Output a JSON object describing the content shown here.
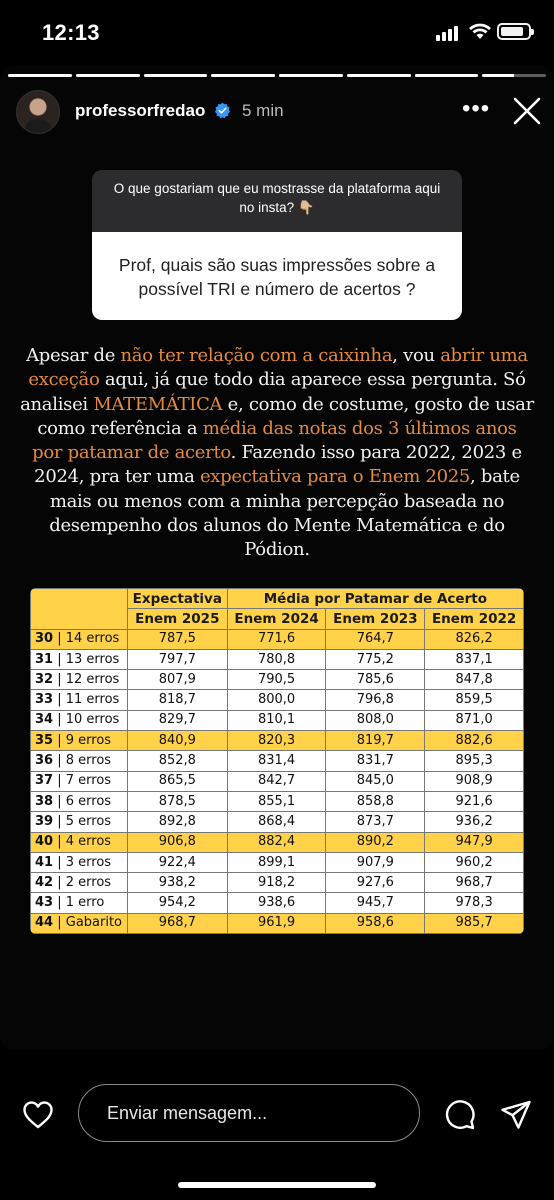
{
  "status_bar": {
    "time": "12:13",
    "battery_level": 0.85
  },
  "story": {
    "progress": [
      1,
      1,
      1,
      1,
      1,
      1,
      1,
      0.5
    ],
    "username": "professorfredao",
    "verified": true,
    "time_ago": "5 min",
    "icons": {
      "more": "more-options-icon",
      "close": "close-icon",
      "verified": "verified-badge-icon"
    },
    "question_sticker": {
      "question": "O que gostariam que eu mostrasse da plataforma aqui no insta? 👇🏼",
      "answer": "Prof, quais são suas impressões sobre a possível TRI e número de acertos ?"
    },
    "caption": {
      "t1": "Apesar de ",
      "h1": "não ter relação com a caixinha",
      "t2": ", vou ",
      "h2": "abrir uma exceção",
      "t3": " aqui, já que todo dia aparece essa pergunta. Só analisei ",
      "h3": "MATEMÁTICA",
      "t4": " e, como de costume, gosto de usar como referência a ",
      "h4": "média das notas dos 3 últimos anos por patamar de acerto",
      "t5": ". Fazendo isso para 2022, 2023 e 2024, pra ter uma ",
      "h5": "expectativa para o Enem 2025",
      "t6": ", bate mais ou menos com a minha percepção baseada no desempenho dos alunos do Mente Matemática e do Pódion.",
      "highlight_color": "#E58A3E"
    },
    "table": {
      "header_group_1": "Expectativa",
      "header_group_2": "Média por Patamar de Acerto",
      "columns": [
        "Enem 2025",
        "Enem 2024",
        "Enem 2023",
        "Enem 2022"
      ],
      "highlight_color": "#FFD24A",
      "rows": [
        {
          "num": "30",
          "label": "| 14 erros",
          "values": [
            "787,5",
            "771,6",
            "764,7",
            "826,2"
          ],
          "highlight": true
        },
        {
          "num": "31",
          "label": "| 13 erros",
          "values": [
            "797,7",
            "780,8",
            "775,2",
            "837,1"
          ],
          "highlight": false
        },
        {
          "num": "32",
          "label": "| 12 erros",
          "values": [
            "807,9",
            "790,5",
            "785,6",
            "847,8"
          ],
          "highlight": false
        },
        {
          "num": "33",
          "label": "| 11 erros",
          "values": [
            "818,7",
            "800,0",
            "796,8",
            "859,5"
          ],
          "highlight": false
        },
        {
          "num": "34",
          "label": "| 10 erros",
          "values": [
            "829,7",
            "810,1",
            "808,0",
            "871,0"
          ],
          "highlight": false
        },
        {
          "num": "35",
          "label": "| 9 erros",
          "values": [
            "840,9",
            "820,3",
            "819,7",
            "882,6"
          ],
          "highlight": true
        },
        {
          "num": "36",
          "label": "| 8 erros",
          "values": [
            "852,8",
            "831,4",
            "831,7",
            "895,3"
          ],
          "highlight": false
        },
        {
          "num": "37",
          "label": "| 7 erros",
          "values": [
            "865,5",
            "842,7",
            "845,0",
            "908,9"
          ],
          "highlight": false
        },
        {
          "num": "38",
          "label": "| 6 erros",
          "values": [
            "878,5",
            "855,1",
            "858,8",
            "921,6"
          ],
          "highlight": false
        },
        {
          "num": "39",
          "label": "| 5 erros",
          "values": [
            "892,8",
            "868,4",
            "873,7",
            "936,2"
          ],
          "highlight": false
        },
        {
          "num": "40",
          "label": "| 4 erros",
          "values": [
            "906,8",
            "882,4",
            "890,2",
            "947,9"
          ],
          "highlight": true
        },
        {
          "num": "41",
          "label": "| 3 erros",
          "values": [
            "922,4",
            "899,1",
            "907,9",
            "960,2"
          ],
          "highlight": false
        },
        {
          "num": "42",
          "label": "| 2 erros",
          "values": [
            "938,2",
            "918,2",
            "927,6",
            "968,7"
          ],
          "highlight": false
        },
        {
          "num": "43",
          "label": "| 1 erro",
          "values": [
            "954,2",
            "938,6",
            "945,7",
            "978,3"
          ],
          "highlight": false
        },
        {
          "num": "44",
          "label": "| Gabarito",
          "values": [
            "968,7",
            "961,9",
            "958,6",
            "985,7"
          ],
          "highlight": true
        }
      ]
    }
  },
  "bottom_bar": {
    "message_placeholder": "Enviar mensagem...",
    "icons": {
      "like": "heart-icon",
      "comment": "comment-icon",
      "share": "share-icon"
    }
  }
}
